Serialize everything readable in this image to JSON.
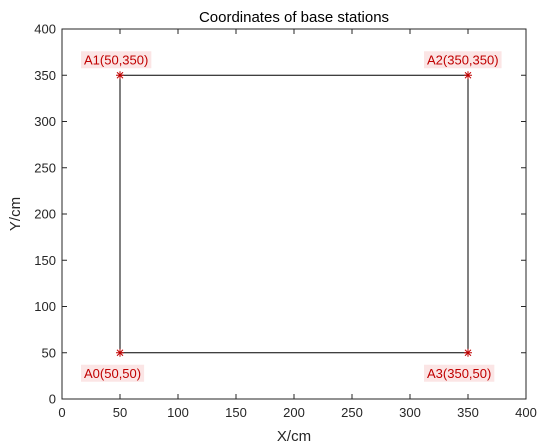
{
  "chart_data": {
    "type": "line",
    "title": "Coordinates of base stations",
    "xlabel": "X/cm",
    "ylabel": "Y/cm",
    "xlim": [
      0,
      400
    ],
    "ylim": [
      0,
      400
    ],
    "xticks": [
      0,
      50,
      100,
      150,
      200,
      250,
      300,
      350,
      400
    ],
    "yticks": [
      0,
      50,
      100,
      150,
      200,
      250,
      300,
      350,
      400
    ],
    "grid": false,
    "series": [
      {
        "x": [
          50,
          50,
          350,
          350,
          50
        ],
        "y": [
          50,
          350,
          350,
          50,
          50
        ],
        "color": "#000000"
      }
    ],
    "points": [
      {
        "label": "A0(50,50)",
        "x": 50,
        "y": 50,
        "placement": "below-left"
      },
      {
        "label": "A1(50,350)",
        "x": 50,
        "y": 350,
        "placement": "above-left"
      },
      {
        "label": "A2(350,350)",
        "x": 350,
        "y": 350,
        "placement": "above-right"
      },
      {
        "label": "A3(350,50)",
        "x": 350,
        "y": 50,
        "placement": "below-right"
      }
    ],
    "marker_color": "#c00000",
    "label_color": "#c00000",
    "label_background": "#fbe5e5"
  }
}
